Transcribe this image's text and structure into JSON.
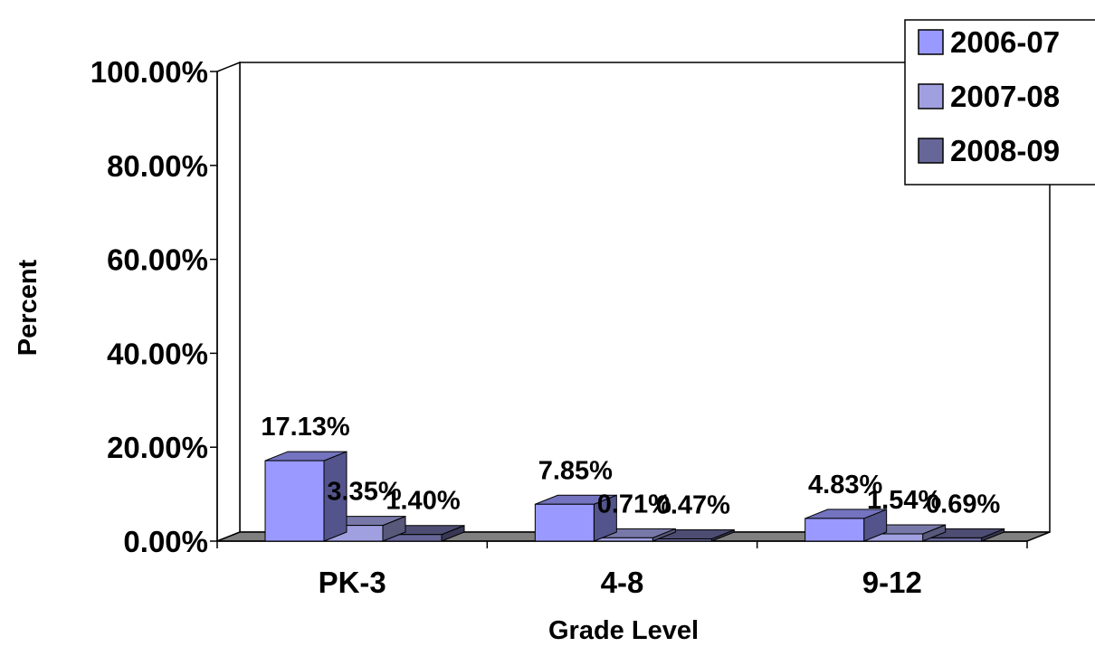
{
  "chart_data": {
    "type": "bar",
    "style": "3d-clustered-column",
    "categories": [
      "PK-3",
      "4-8",
      "9-12"
    ],
    "series": [
      {
        "name": "2006-07",
        "values": [
          17.13,
          7.85,
          4.83
        ],
        "labels": [
          "17.13%",
          "7.85%",
          "4.83%"
        ],
        "color": "#9999ff"
      },
      {
        "name": "2007-08",
        "values": [
          3.35,
          0.71,
          1.54
        ],
        "labels": [
          "3.35%",
          "0.71%",
          "1.54%"
        ],
        "color": "#a0a0e0"
      },
      {
        "name": "2008-09",
        "values": [
          1.4,
          0.47,
          0.69
        ],
        "labels": [
          "1.40%",
          "0.47%",
          "0.69%"
        ],
        "color": "#666699"
      }
    ],
    "xlabel": "Grade Level",
    "ylabel": "Percent",
    "ylim": [
      0,
      100
    ],
    "yticks": [
      "0.00%",
      "20.00%",
      "40.00%",
      "60.00%",
      "80.00%",
      "100.00%"
    ],
    "grid": false,
    "legend_position": "top-right",
    "floor_color": "#808080"
  }
}
